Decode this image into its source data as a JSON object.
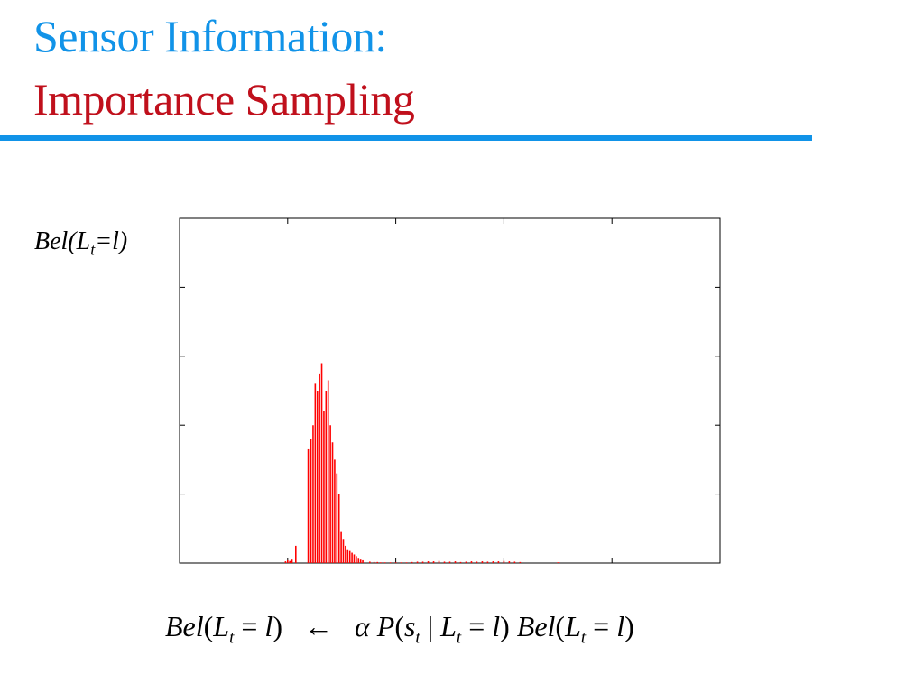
{
  "slide": {
    "title_line1": "Sensor Information:",
    "title_line2": "Importance Sampling",
    "title_line1_color": "#1193e8",
    "title_line2_color": "#c0101c",
    "rule_color": "#1193e8"
  },
  "chart_data": {
    "type": "bar",
    "ylabel": "Bel(Lt=l)",
    "xlim": [
      0,
      1000
    ],
    "ylim": [
      0,
      1
    ],
    "bar_color": "#ff0000",
    "x": [
      196,
      200,
      204,
      208,
      215,
      238,
      243,
      247,
      251,
      255,
      259,
      263,
      267,
      271,
      275,
      279,
      283,
      287,
      291,
      295,
      299,
      303,
      307,
      311,
      315,
      319,
      323,
      327,
      331,
      335,
      339,
      352,
      360,
      366,
      372,
      380,
      390,
      400,
      410,
      420,
      430,
      440,
      450,
      460,
      470,
      480,
      490,
      500,
      510,
      520,
      530,
      540,
      550,
      560,
      570,
      580,
      590,
      600,
      610,
      620,
      630,
      700,
      702
    ],
    "y": [
      0.005,
      0.008,
      0.006,
      0.01,
      0.05,
      0.33,
      0.36,
      0.4,
      0.52,
      0.5,
      0.55,
      0.58,
      0.44,
      0.5,
      0.53,
      0.4,
      0.35,
      0.3,
      0.26,
      0.2,
      0.09,
      0.07,
      0.05,
      0.04,
      0.035,
      0.03,
      0.025,
      0.02,
      0.015,
      0.01,
      0.008,
      0.004,
      0.003,
      0.003,
      0.002,
      0.002,
      0.002,
      0.002,
      0.002,
      0.002,
      0.003,
      0.004,
      0.004,
      0.005,
      0.005,
      0.006,
      0.004,
      0.004,
      0.005,
      0.003,
      0.004,
      0.005,
      0.004,
      0.005,
      0.004,
      0.005,
      0.005,
      0.006,
      0.005,
      0.004,
      0.003,
      0.002,
      0.002
    ]
  },
  "formula": {
    "lhs_bel": "Bel",
    "lhs_l": "L",
    "lhs_t": "t",
    "lhs_eq": " = ",
    "lhs_val": "l",
    "arrow": "←",
    "alpha": "α",
    "p": "P",
    "s": "s",
    "s_t": "t",
    "bar": " | ",
    "mid_l": "L",
    "mid_t": "t",
    "mid_eq": " = ",
    "mid_val": "l",
    "rhs_bel": "Bel",
    "rhs_l": "L",
    "rhs_t": "t",
    "rhs_eq": " = ",
    "rhs_val": "l"
  }
}
